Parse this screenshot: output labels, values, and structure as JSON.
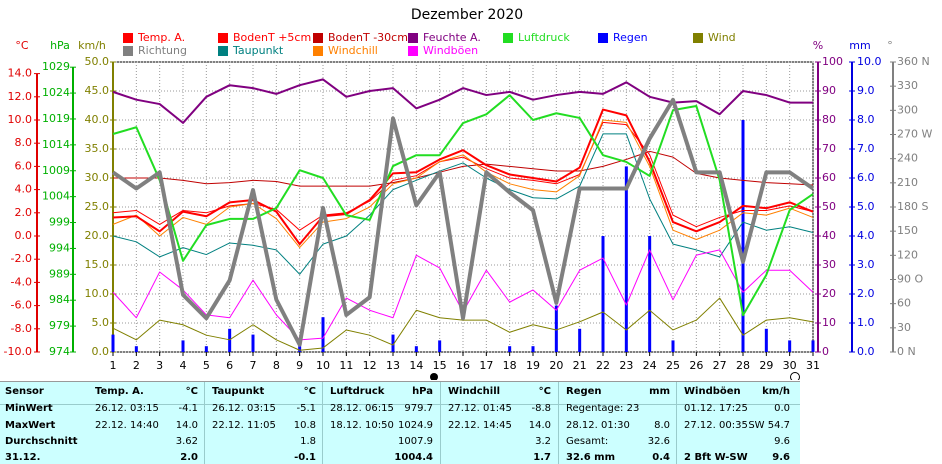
{
  "chart_data": {
    "type": "line",
    "title": "Dezember 2020",
    "categories": [
      "1",
      "2",
      "3",
      "4",
      "5",
      "6",
      "7",
      "8",
      "9",
      "10",
      "11",
      "12",
      "13",
      "14",
      "15",
      "16",
      "17",
      "18",
      "19",
      "20",
      "21",
      "22",
      "23",
      "24",
      "25",
      "26",
      "27",
      "28",
      "29",
      "30",
      "31"
    ],
    "axes": [
      {
        "unit": "°C",
        "side": "left",
        "color": "#e00000",
        "lim": [
          -10,
          15
        ],
        "ticks": [
          {
            "value": -10,
            "label": "-10.0"
          },
          {
            "value": -8,
            "label": "-8.0"
          },
          {
            "value": -6,
            "label": "-6.0"
          },
          {
            "value": -4,
            "label": "-4.0"
          },
          {
            "value": -2,
            "label": "-2.0"
          },
          {
            "value": 0,
            "label": "0.0"
          },
          {
            "value": 2,
            "label": "2.0"
          },
          {
            "value": 4,
            "label": "4.0"
          },
          {
            "value": 6,
            "label": "6.0"
          },
          {
            "value": 8,
            "label": "8.0"
          },
          {
            "value": 10,
            "label": "10.0"
          },
          {
            "value": 12,
            "label": "12.0"
          },
          {
            "value": 14,
            "label": "14.0"
          }
        ]
      },
      {
        "unit": "hPa",
        "side": "left",
        "color": "#00b000",
        "lim": [
          974,
          1030
        ],
        "ticks": [
          974,
          979,
          984,
          989,
          994,
          999,
          1004,
          1009,
          1014,
          1019,
          1024,
          1029
        ]
      },
      {
        "unit": "km/h",
        "side": "left",
        "color": "#808000",
        "lim": [
          0,
          50
        ],
        "grid": true,
        "ticks": [
          {
            "value": 0,
            "label": "0.0"
          },
          {
            "value": 5,
            "label": "5.0"
          },
          {
            "value": 10,
            "label": "10.0"
          },
          {
            "value": 15,
            "label": "15.0"
          },
          {
            "value": 20,
            "label": "20.0"
          },
          {
            "value": 25,
            "label": "25.0"
          },
          {
            "value": 30,
            "label": "30.0"
          },
          {
            "value": 35,
            "label": "35.0"
          },
          {
            "value": 40,
            "label": "40.0"
          },
          {
            "value": 45,
            "label": "45.0"
          },
          {
            "value": 50,
            "label": "50.0"
          }
        ]
      },
      {
        "unit": "%",
        "side": "right",
        "color": "#800080",
        "lim": [
          0,
          100
        ],
        "ticks": [
          0,
          10,
          20,
          30,
          40,
          50,
          60,
          70,
          80,
          90,
          100
        ]
      },
      {
        "unit": "mm",
        "side": "right",
        "color": "#0000e0",
        "lim": [
          0,
          10
        ],
        "ticks": [
          {
            "value": 0,
            "label": "0.0"
          },
          {
            "value": 1,
            "label": "1.0"
          },
          {
            "value": 2,
            "label": "2.0"
          },
          {
            "value": 3,
            "label": "3.0"
          },
          {
            "value": 4,
            "label": "4.0"
          },
          {
            "value": 5,
            "label": "5.0"
          },
          {
            "value": 6,
            "label": "6.0"
          },
          {
            "value": 7,
            "label": "7.0"
          },
          {
            "value": 8,
            "label": "8.0"
          },
          {
            "value": 9,
            "label": "9.0"
          },
          {
            "value": 10,
            "label": "10.0"
          }
        ]
      },
      {
        "unit": "°",
        "side": "right",
        "color": "#808080",
        "lim": [
          0,
          360
        ],
        "ticks": [
          {
            "value": 0,
            "label": "0 N"
          },
          30,
          60,
          {
            "value": 90,
            "label": "90 O"
          },
          120,
          150,
          {
            "value": 180,
            "label": "180 S"
          },
          210,
          240,
          {
            "value": 270,
            "label": "270 W"
          },
          300,
          330,
          {
            "value": 360,
            "label": "360 N"
          }
        ]
      }
    ],
    "series": [
      {
        "name": "Temp. A.",
        "color": "#ff0000",
        "axis": 0,
        "width": 2,
        "values": [
          1.6,
          1.7,
          0.4,
          2.1,
          1.7,
          2.9,
          3.1,
          2.1,
          -0.7,
          1.7,
          1.9,
          3.1,
          5.4,
          5.5,
          6.6,
          7.4,
          6.1,
          5.3,
          5.0,
          4.7,
          5.9,
          10.9,
          10.4,
          6.4,
          1.2,
          0.4,
          1.2,
          2.6,
          2.4,
          2.9,
          2.1
        ]
      },
      {
        "name": "BodenT +5cm",
        "color": "#ff0000",
        "axis": 0,
        "width": 1,
        "values": [
          2.0,
          2.2,
          1.0,
          2.2,
          2.0,
          2.6,
          2.8,
          2.3,
          0.5,
          1.8,
          2.0,
          3.0,
          4.8,
          5.2,
          6.4,
          6.8,
          5.8,
          5.0,
          4.8,
          4.5,
          5.3,
          9.8,
          9.6,
          7.0,
          1.8,
          0.8,
          1.6,
          2.2,
          2.2,
          2.6,
          2.1
        ]
      },
      {
        "name": "BodenT -30cm",
        "color": "#c00000",
        "axis": 0,
        "width": 1,
        "values": [
          5.0,
          5.0,
          5.0,
          4.8,
          4.5,
          4.6,
          4.8,
          4.7,
          4.3,
          4.3,
          4.3,
          4.3,
          4.6,
          5.0,
          5.5,
          6.0,
          6.2,
          6.0,
          5.8,
          5.6,
          5.6,
          6.0,
          6.6,
          7.3,
          6.8,
          5.4,
          5.0,
          4.8,
          4.6,
          4.5,
          4.4
        ]
      },
      {
        "name": "Feuchte A.",
        "color": "#800080",
        "axis": 3,
        "width": 2,
        "values": [
          89.7,
          87,
          85.5,
          79,
          88,
          92,
          91,
          89,
          92,
          94,
          88,
          90,
          91,
          84,
          87,
          91,
          88.6,
          89.7,
          87,
          88.6,
          89.7,
          89,
          93,
          88,
          86,
          86.5,
          82,
          90,
          88.6,
          86,
          86
        ]
      },
      {
        "name": "Luftdruck",
        "color": "#22dd22",
        "axis": 1,
        "width": 2,
        "values": [
          1016.1,
          1017.4,
          1007.2,
          991.6,
          998.5,
          999.7,
          999.7,
          1001.8,
          1009.1,
          1007.6,
          1000.4,
          999.5,
          1009.9,
          1012.0,
          1012.0,
          1018.2,
          1019.9,
          1023.6,
          1018.8,
          1020.1,
          1019.2,
          1012.0,
          1010.7,
          1008.0,
          1020.7,
          1021.5,
          1007.2,
          981.1,
          988.9,
          1001.4,
          1004.5
        ]
      },
      {
        "name": "Regen",
        "color": "#0000ff",
        "axis": 4,
        "type": "bar",
        "values": [
          0.6,
          0.2,
          0,
          0.4,
          0.2,
          0.8,
          0.6,
          0,
          0.2,
          1.2,
          0,
          0,
          0.6,
          0.2,
          0.4,
          0,
          0,
          0.2,
          0.2,
          1.6,
          0.8,
          4.0,
          6.4,
          4.0,
          0.4,
          0,
          0,
          8.0,
          0.8,
          0.4,
          0.4
        ]
      },
      {
        "name": "Wind",
        "color": "#808000",
        "axis": 2,
        "width": 1,
        "values": [
          4.1,
          2.1,
          5.5,
          4.7,
          2.9,
          2.1,
          4.7,
          2.1,
          0.3,
          0.7,
          3.8,
          2.9,
          1.2,
          7.2,
          5.9,
          5.5,
          5.5,
          3.4,
          4.7,
          3.8,
          5.2,
          6.9,
          3.8,
          7.2,
          3.8,
          5.5,
          9.3,
          2.9,
          5.5,
          5.9,
          5.2
        ]
      },
      {
        "name": "Richtung",
        "color": "#808080",
        "axis": 5,
        "width": 4,
        "values": [
          223,
          203,
          223,
          71,
          42,
          89,
          201,
          65,
          9,
          179,
          46,
          68,
          290,
          182,
          223,
          42,
          223,
          198,
          176,
          61,
          203,
          203,
          203,
          265,
          313,
          223,
          223,
          112,
          223,
          223,
          203
        ]
      },
      {
        "name": "Taupunkt",
        "color": "#008080",
        "axis": 0,
        "width": 1,
        "values": [
          0.0,
          -0.5,
          -1.8,
          -1.0,
          -1.6,
          -0.6,
          -0.8,
          -1.2,
          -3.3,
          -0.7,
          0.0,
          1.8,
          4.0,
          4.8,
          5.6,
          6.3,
          5.0,
          4.0,
          3.3,
          3.2,
          4.3,
          8.8,
          8.8,
          3.2,
          -0.7,
          -1.2,
          -1.8,
          1.2,
          0.5,
          0.8,
          0.3
        ]
      },
      {
        "name": "Windchill",
        "color": "#ff8000",
        "axis": 0,
        "width": 1,
        "values": [
          1.0,
          1.8,
          0.0,
          1.6,
          1.0,
          2.5,
          2.8,
          1.5,
          -1.0,
          1.2,
          1.5,
          2.5,
          4.5,
          5.0,
          6.4,
          7.0,
          5.5,
          4.5,
          4.0,
          3.8,
          5.2,
          10.0,
          9.8,
          6.0,
          0.5,
          -0.3,
          0.5,
          2.0,
          1.8,
          2.4,
          1.6
        ]
      },
      {
        "name": "Windböen",
        "color": "#ff00ff",
        "axis": 2,
        "width": 1,
        "values": [
          10.3,
          5.9,
          13.8,
          10.7,
          6.4,
          5.9,
          12.4,
          6.4,
          2.1,
          2.4,
          9.3,
          7.2,
          5.9,
          16.7,
          14.5,
          6.9,
          14.1,
          8.6,
          10.7,
          7.2,
          14.1,
          16.2,
          8.1,
          17.6,
          9.0,
          16.7,
          17.6,
          10.3,
          14.1,
          14.1,
          10.3
        ]
      }
    ]
  },
  "table": {
    "row_labels": [
      "Sensor",
      "MinWert",
      "MaxWert",
      "Durchschnitt",
      "31.12."
    ],
    "groups": [
      {
        "name": "Temp. A.",
        "unit": "°C",
        "cells": [
          [
            "26.12. 03:15",
            "-4.1"
          ],
          [
            "22.12. 14:40",
            "14.0"
          ],
          [
            null,
            "3.62"
          ],
          [
            null,
            "2.0"
          ]
        ]
      },
      {
        "name": "Taupunkt",
        "unit": "°C",
        "cells": [
          [
            "26.12. 03:15",
            "-5.1"
          ],
          [
            "22.12. 11:05",
            "10.8"
          ],
          [
            null,
            "1.8"
          ],
          [
            null,
            "-0.1"
          ]
        ]
      },
      {
        "name": "Luftdruck",
        "unit": "hPa",
        "cells": [
          [
            "28.12. 06:15",
            "979.7"
          ],
          [
            "18.12. 10:50",
            "1024.9"
          ],
          [
            null,
            "1007.9"
          ],
          [
            null,
            "1004.4"
          ]
        ]
      },
      {
        "name": "Windchill",
        "unit": "°C",
        "cells": [
          [
            "27.12. 01:45",
            "-8.8"
          ],
          [
            "22.12. 14:45",
            "14.0"
          ],
          [
            null,
            "3.2"
          ],
          [
            null,
            "1.7"
          ]
        ]
      },
      {
        "name": "Regen",
        "unit": "mm",
        "cells": [
          [
            "Regentage: 23",
            null
          ],
          [
            "28.12. 01:30",
            "8.0"
          ],
          [
            "Gesamt:",
            "32.6"
          ],
          [
            "32.6 mm",
            "0.4"
          ]
        ]
      },
      {
        "name": "Windböen",
        "unit": "km/h",
        "cells": [
          [
            "01.12. 17:25",
            "0.0"
          ],
          [
            "27.12. 00:35",
            "SW 54.7"
          ],
          [
            null,
            "9.6"
          ],
          [
            "2 Bft W-SW",
            "9.6"
          ]
        ]
      }
    ]
  }
}
